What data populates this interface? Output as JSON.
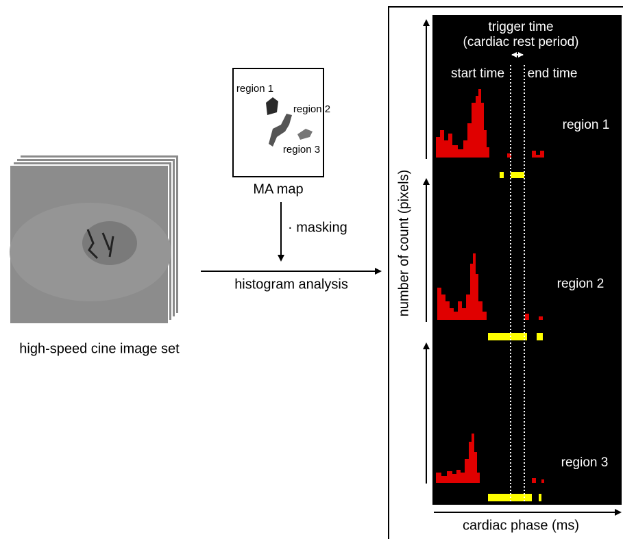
{
  "image_stack": {
    "label": "high-speed cine image set"
  },
  "ma_map": {
    "label": "MA map",
    "regions": [
      "region 1",
      "region 2",
      "region 3"
    ]
  },
  "steps": {
    "masking": "· masking",
    "histogram": "histogram analysis"
  },
  "panel": {
    "trigger_title": "trigger time",
    "trigger_subtitle": "(cardiac rest period)",
    "start": "start time",
    "end": "end time",
    "regions": [
      "region 1",
      "region 2",
      "region 3"
    ],
    "y_label": "number of count (pixels)",
    "x_label": "cardiac phase (ms)"
  }
}
